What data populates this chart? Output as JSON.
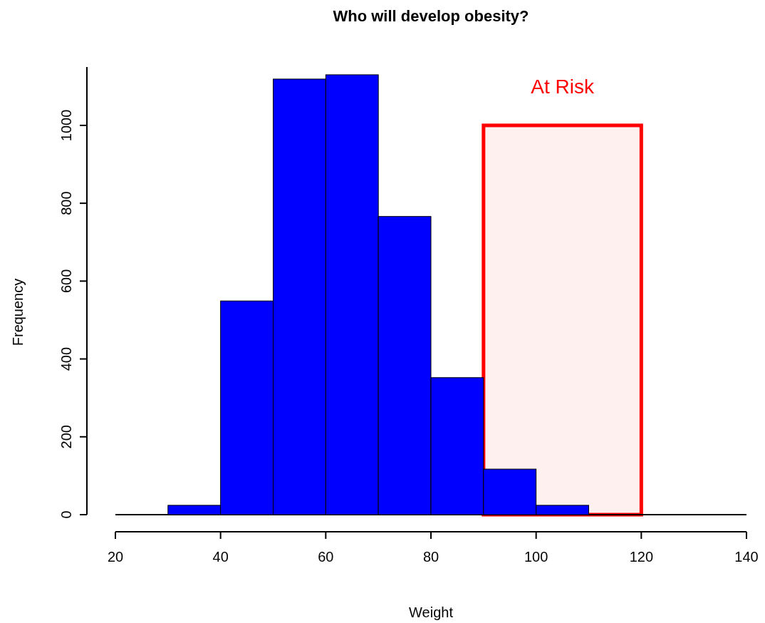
{
  "chart_data": {
    "type": "histogram",
    "title": "Who will develop obesity?",
    "xlabel": "Weight",
    "ylabel": "Frequency",
    "bins": [
      30,
      40,
      50,
      60,
      70,
      80,
      90,
      100,
      110
    ],
    "values": [
      24,
      549,
      1119,
      1130,
      766,
      352,
      117,
      24
    ],
    "color": "#0000ff",
    "xlim": [
      20,
      140
    ],
    "xticks": [
      20,
      40,
      60,
      80,
      100,
      120,
      140
    ],
    "ylim": [
      0,
      1150
    ],
    "yticks": [
      0,
      200,
      400,
      600,
      800,
      1000
    ],
    "ref_lines": [
      {
        "axis": "y",
        "value": 0,
        "color": "#000000"
      }
    ],
    "bands": [
      {
        "axis": "x",
        "from": 90,
        "to": 120,
        "label": "At Risk",
        "color": "#ff0000"
      }
    ]
  }
}
